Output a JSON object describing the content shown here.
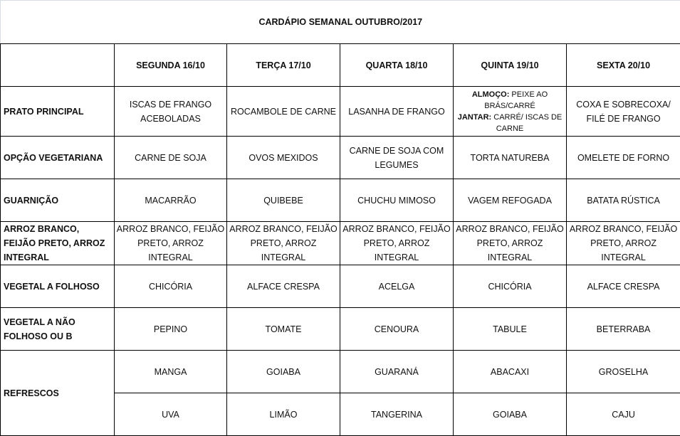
{
  "title": "CARDÁPIO SEMANAL OUTUBRO/2017",
  "days": [
    "SEGUNDA   16/10",
    "TERÇA 17/10",
    "QUARTA 18/10",
    "QUINTA 19/10",
    "SEXTA 20/10"
  ],
  "rows": {
    "prato": {
      "label": "PRATO PRINCIPAL",
      "values": [
        "ISCAS DE FRANGO ACEBOLADAS",
        "ROCAMBOLE DE CARNE",
        "LASANHA DE FRANGO",
        "",
        "COXA E SOBRECOXA/ FILÉ DE FRANGO"
      ],
      "quinta": {
        "almoco_label": "ALMOÇO:",
        "almoco": " PEIXE AO BRÁS/CARRÉ",
        "jantar_label": "JANTAR:",
        "jantar": " CARRÉ/ ISCAS DE CARNE"
      }
    },
    "vegetariana": {
      "label": "OPÇÃO VEGETARIANA",
      "values": [
        "CARNE DE SOJA",
        "OVOS MEXIDOS",
        "CARNE DE SOJA COM LEGUMES",
        "TORTA NATUREBA",
        "OMELETE DE FORNO"
      ]
    },
    "guarnicao": {
      "label": "GUARNIÇÃO",
      "values": [
        "MACARRÃO",
        "QUIBEBE",
        "CHUCHU MIMOSO",
        "VAGEM REFOGADA",
        "BATATA RÚSTICA"
      ]
    },
    "arroz": {
      "label": "ARROZ BRANCO, FEIJÃO PRETO, ARROZ INTEGRAL",
      "values": [
        "ARROZ BRANCO, FEIJÃO PRETO, ARROZ INTEGRAL",
        "ARROZ BRANCO, FEIJÃO PRETO, ARROZ INTEGRAL",
        "ARROZ BRANCO, FEIJÃO PRETO, ARROZ INTEGRAL",
        "ARROZ BRANCO, FEIJÃO PRETO, ARROZ INTEGRAL",
        "ARROZ BRANCO, FEIJÃO PRETO, ARROZ INTEGRAL"
      ]
    },
    "folhoso": {
      "label": "VEGETAL A FOLHOSO",
      "values": [
        "CHICÓRIA",
        "ALFACE CRESPA",
        "ACELGA",
        "CHICÓRIA",
        "ALFACE CRESPA"
      ]
    },
    "nao_folhoso": {
      "label": "VEGETAL A NÃO FOLHOSO OU B",
      "values": [
        "PEPINO",
        "TOMATE",
        "CENOURA",
        "TABULE",
        "BETERRABA"
      ]
    },
    "refrescos": {
      "label": "REFRESCOS",
      "values1": [
        "MANGA",
        "GOIABA",
        "GUARANÁ",
        "ABACAXI",
        "GROSELHA"
      ],
      "values2": [
        "UVA",
        "LIMÃO",
        "TANGERINA",
        "GOIABA",
        "CAJU"
      ]
    }
  }
}
